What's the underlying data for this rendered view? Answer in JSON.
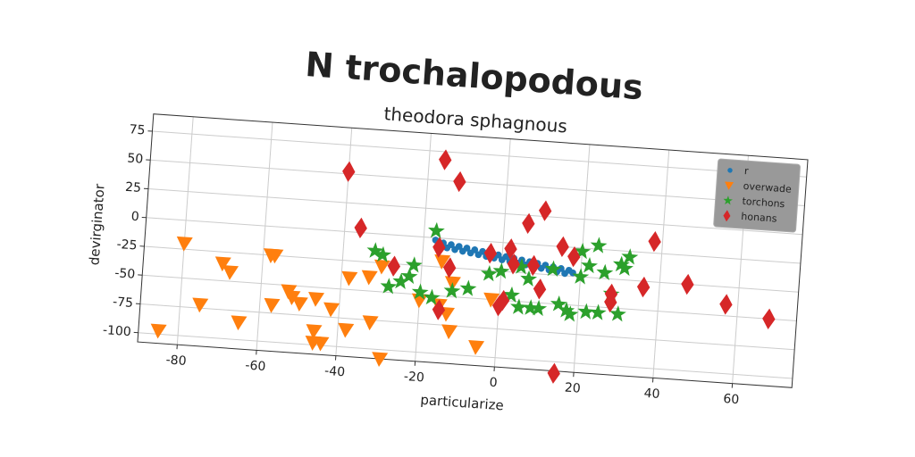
{
  "chart_data": {
    "type": "scatter",
    "title": "N trochalopodous",
    "subtitle": "theodora sphagnous",
    "x_label": "particularize",
    "y_label": "devirginator",
    "xlim": [
      -90,
      75
    ],
    "ylim": [
      -108,
      90
    ],
    "xticks": [
      -80,
      -60,
      -40,
      -20,
      0,
      20,
      40,
      60
    ],
    "yticks": [
      -100,
      -75,
      -50,
      -25,
      0,
      25,
      50,
      75
    ],
    "grid": true,
    "legend": "upper right",
    "series": [
      {
        "name": "r",
        "color": "#1f77b4",
        "marker": "circle",
        "x": [
          -17,
          -16,
          -15,
          -14,
          -13,
          -12,
          -11,
          -10,
          -9,
          -8,
          -7,
          -6,
          -5,
          -4,
          -3,
          -2,
          -1,
          0,
          1,
          2,
          3,
          4,
          5,
          6,
          7,
          8,
          9,
          10,
          11,
          12,
          13,
          14,
          15,
          16,
          17,
          18
        ],
        "values": [
          -2,
          -6,
          -4,
          -8,
          -5,
          -9,
          -6,
          -10,
          -7,
          -11,
          -8,
          -12,
          -9,
          -13,
          -10,
          -14,
          -11,
          -15,
          -12,
          -16,
          -13,
          -17,
          -14,
          -18,
          -15,
          -19,
          -16,
          -20,
          -17,
          -21,
          -18,
          -22,
          -19,
          -23,
          -20,
          -22
        ]
      },
      {
        "name": "overwade",
        "color": "#ff7f0e",
        "marker": "triangle-down",
        "x": [
          -85,
          -80,
          -75,
          -70,
          -68,
          -65,
          -58,
          -57,
          -57,
          -53,
          -52,
          -50,
          -46,
          -46,
          -46,
          -44,
          -42,
          -38,
          -38,
          -33,
          -32,
          -30,
          -29,
          -20,
          -15,
          -13,
          -12,
          -12,
          -5,
          -2,
          -15
        ],
        "values": [
          -97,
          -20,
          -72,
          -35,
          -42,
          -85,
          -25,
          -25,
          -68,
          -55,
          -60,
          -65,
          -60,
          -88,
          -98,
          -98,
          -68,
          -85,
          -40,
          -38,
          -77,
          -28,
          -108,
          -55,
          -58,
          -65,
          -80,
          -38,
          -92,
          -50,
          -20
        ]
      },
      {
        "name": "torchons",
        "color": "#2ca02c",
        "marker": "star",
        "x": [
          -17,
          -32,
          -30,
          -28,
          -25,
          -23,
          -22,
          -20,
          -17,
          -12,
          -8,
          -3,
          0,
          3,
          5,
          5,
          7,
          8,
          10,
          13,
          15,
          17,
          18,
          20,
          20,
          22,
          24,
          25,
          28,
          30,
          30,
          31,
          32,
          22,
          26
        ],
        "values": [
          6,
          -15,
          -18,
          -45,
          -40,
          -35,
          -25,
          -48,
          -52,
          -45,
          -42,
          -28,
          -25,
          -45,
          -20,
          -55,
          -30,
          -55,
          -55,
          -20,
          -50,
          -55,
          -58,
          -3,
          -25,
          -55,
          3,
          -55,
          -38,
          -55,
          -12,
          -15,
          -5,
          -15,
          -20
        ]
      },
      {
        "name": "honans",
        "color": "#d62728",
        "marker": "diamond",
        "x": [
          -40,
          -36,
          -27,
          -16,
          -16,
          -13,
          -12,
          -15,
          -3,
          0,
          1,
          3,
          6,
          8,
          10,
          10,
          15,
          15,
          18,
          28,
          28,
          36,
          38,
          47,
          57,
          68,
          2
        ],
        "values": [
          52,
          4,
          -27,
          -8,
          68,
          -25,
          50,
          -62,
          -10,
          -55,
          -50,
          -18,
          18,
          -18,
          -38,
          30,
          0,
          -110,
          -8,
          -38,
          -45,
          -30,
          10,
          -25,
          -40,
          -50,
          -5
        ]
      }
    ]
  }
}
